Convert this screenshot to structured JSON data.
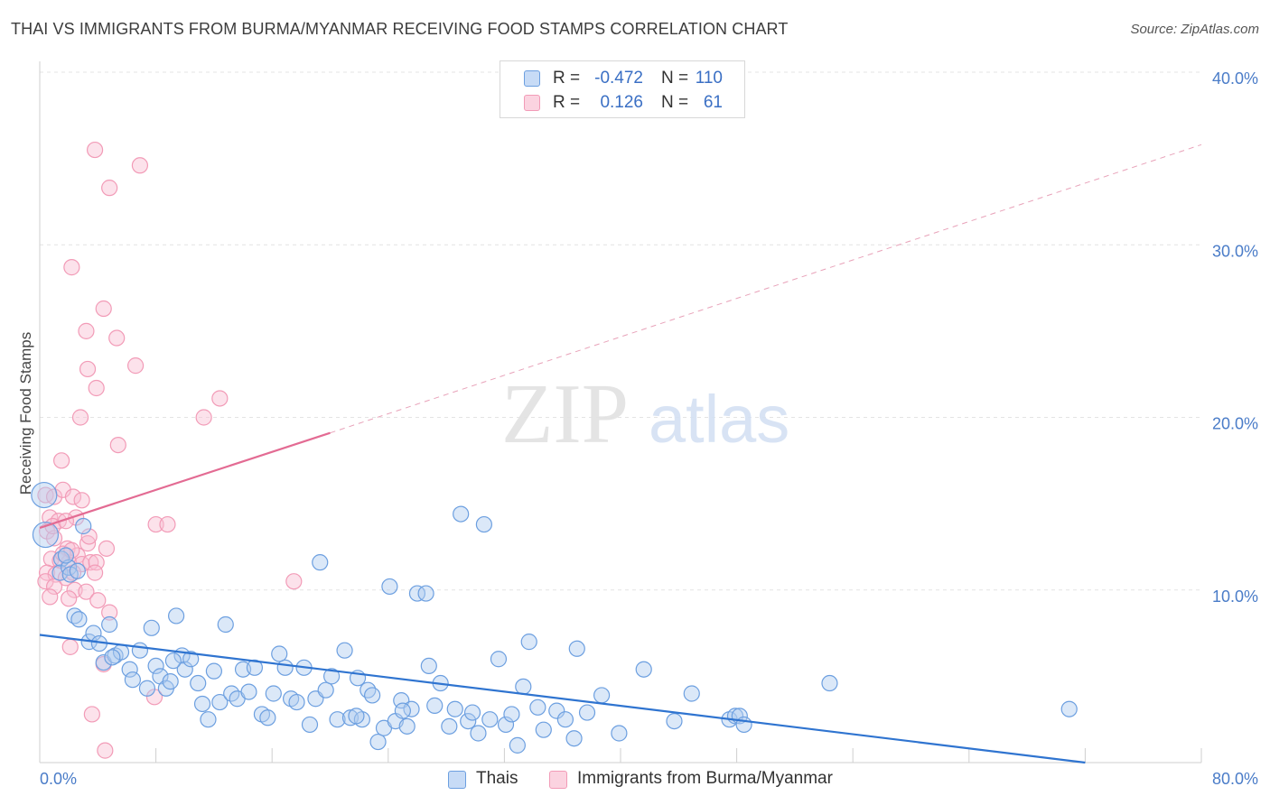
{
  "title": "THAI VS IMMIGRANTS FROM BURMA/MYANMAR RECEIVING FOOD STAMPS CORRELATION CHART",
  "source": "Source: ZipAtlas.com",
  "watermark": {
    "zip": "ZIP",
    "atlas": "atlas"
  },
  "colors": {
    "thai": "#6c9fe0",
    "thai_line": "#2f74d0",
    "burma": "#f29bb7",
    "burma_line": "#e36b93",
    "tick": "#4a7cc8"
  },
  "legend": {
    "rows": [
      {
        "r_label": "R =",
        "r_value": "-0.472",
        "n_label": "N =",
        "n_value": "110"
      },
      {
        "r_label": "R =",
        "r_value": "0.126",
        "n_label": "N =",
        "n_value": "61"
      }
    ]
  },
  "bottom_legend": {
    "thai": "Thais",
    "burma": "Immigrants from Burma/Myanmar"
  },
  "chart_data": {
    "type": "scatter",
    "title": "THAI VS IMMIGRANTS FROM BURMA/MYANMAR RECEIVING FOOD STAMPS CORRELATION CHART",
    "xlabel": "",
    "ylabel": "Receiving Food Stamps",
    "xlim": [
      0,
      80
    ],
    "ylim": [
      0,
      40
    ],
    "x_tick_labels": [
      "0.0%",
      "80.0%"
    ],
    "y_ticks": [
      10,
      20,
      30,
      40
    ],
    "y_tick_labels": [
      "10.0%",
      "20.0%",
      "30.0%",
      "40.0%"
    ],
    "series": [
      {
        "name": "Thais",
        "r": -0.472,
        "n": 110,
        "trend": {
          "x": [
            0,
            72
          ],
          "y": [
            7.4,
            0
          ],
          "style": "solid"
        },
        "points": [
          [
            0.3,
            15.5
          ],
          [
            0.4,
            13.2
          ],
          [
            1.5,
            11.8
          ],
          [
            1.4,
            11.0
          ],
          [
            2.0,
            11.3
          ],
          [
            2.1,
            10.9
          ],
          [
            3.0,
            13.7
          ],
          [
            2.4,
            8.5
          ],
          [
            2.7,
            8.3
          ],
          [
            3.4,
            7.0
          ],
          [
            3.7,
            7.5
          ],
          [
            4.1,
            6.9
          ],
          [
            4.4,
            5.8
          ],
          [
            4.8,
            8.0
          ],
          [
            5.2,
            6.2
          ],
          [
            5.6,
            6.4
          ],
          [
            6.2,
            5.4
          ],
          [
            6.4,
            4.8
          ],
          [
            6.9,
            6.5
          ],
          [
            7.4,
            4.3
          ],
          [
            7.7,
            7.8
          ],
          [
            8.0,
            5.6
          ],
          [
            8.3,
            5.0
          ],
          [
            8.7,
            4.3
          ],
          [
            9.0,
            4.7
          ],
          [
            9.4,
            8.5
          ],
          [
            9.8,
            6.2
          ],
          [
            10.0,
            5.4
          ],
          [
            10.4,
            6.0
          ],
          [
            10.9,
            4.6
          ],
          [
            11.2,
            3.4
          ],
          [
            11.6,
            2.5
          ],
          [
            12.0,
            5.3
          ],
          [
            12.4,
            3.5
          ],
          [
            12.8,
            8.0
          ],
          [
            13.2,
            4.0
          ],
          [
            13.6,
            3.7
          ],
          [
            14.0,
            5.4
          ],
          [
            14.4,
            4.1
          ],
          [
            14.8,
            5.5
          ],
          [
            15.3,
            2.8
          ],
          [
            15.7,
            2.6
          ],
          [
            16.1,
            4.0
          ],
          [
            16.5,
            6.3
          ],
          [
            16.9,
            5.5
          ],
          [
            17.3,
            3.7
          ],
          [
            17.7,
            3.5
          ],
          [
            18.2,
            5.5
          ],
          [
            18.6,
            2.2
          ],
          [
            19.0,
            3.7
          ],
          [
            19.3,
            11.6
          ],
          [
            19.7,
            4.2
          ],
          [
            20.1,
            5.0
          ],
          [
            20.5,
            2.5
          ],
          [
            21.0,
            6.5
          ],
          [
            21.4,
            2.6
          ],
          [
            21.9,
            4.9
          ],
          [
            22.2,
            2.5
          ],
          [
            22.6,
            4.2
          ],
          [
            22.9,
            3.9
          ],
          [
            23.3,
            1.2
          ],
          [
            23.7,
            2.0
          ],
          [
            24.1,
            10.2
          ],
          [
            24.5,
            2.4
          ],
          [
            24.9,
            3.6
          ],
          [
            25.3,
            2.1
          ],
          [
            25.6,
            3.1
          ],
          [
            26.0,
            9.8
          ],
          [
            26.6,
            9.8
          ],
          [
            26.8,
            5.6
          ],
          [
            27.2,
            3.3
          ],
          [
            27.6,
            4.6
          ],
          [
            28.2,
            2.1
          ],
          [
            28.6,
            3.1
          ],
          [
            29.0,
            14.4
          ],
          [
            29.5,
            2.4
          ],
          [
            29.8,
            2.9
          ],
          [
            30.2,
            1.7
          ],
          [
            30.6,
            13.8
          ],
          [
            31.0,
            2.5
          ],
          [
            31.6,
            6.0
          ],
          [
            32.1,
            2.2
          ],
          [
            32.5,
            2.8
          ],
          [
            32.9,
            1.0
          ],
          [
            33.3,
            4.4
          ],
          [
            33.7,
            7.0
          ],
          [
            34.3,
            3.2
          ],
          [
            34.7,
            1.9
          ],
          [
            35.6,
            3.0
          ],
          [
            36.2,
            2.5
          ],
          [
            36.8,
            1.4
          ],
          [
            37.0,
            6.6
          ],
          [
            37.7,
            2.9
          ],
          [
            38.7,
            3.9
          ],
          [
            39.9,
            1.7
          ],
          [
            41.6,
            5.4
          ],
          [
            43.7,
            2.4
          ],
          [
            44.9,
            4.0
          ],
          [
            47.5,
            2.5
          ],
          [
            47.9,
            2.7
          ],
          [
            48.2,
            2.7
          ],
          [
            48.5,
            2.2
          ],
          [
            54.4,
            4.6
          ],
          [
            70.9,
            3.1
          ],
          [
            1.8,
            12.0
          ],
          [
            2.6,
            11.1
          ],
          [
            5.0,
            6.1
          ],
          [
            9.2,
            5.9
          ],
          [
            21.8,
            2.7
          ],
          [
            25.0,
            3.0
          ]
        ]
      },
      {
        "name": "Immigrants from Burma/Myanmar",
        "r": 0.126,
        "n": 61,
        "trend": {
          "x": [
            0,
            20
          ],
          "y": [
            13.6,
            19.1
          ],
          "style": "solid",
          "extension": {
            "x": [
              20,
              80
            ],
            "y": [
              19.1,
              35.8
            ],
            "style": "dashed"
          }
        },
        "points": [
          [
            3.8,
            35.5
          ],
          [
            4.8,
            33.3
          ],
          [
            6.9,
            34.6
          ],
          [
            2.2,
            28.7
          ],
          [
            4.4,
            26.3
          ],
          [
            3.2,
            25.0
          ],
          [
            5.3,
            24.6
          ],
          [
            3.3,
            22.8
          ],
          [
            6.6,
            23.0
          ],
          [
            3.9,
            21.7
          ],
          [
            12.4,
            21.1
          ],
          [
            2.8,
            20.0
          ],
          [
            11.3,
            20.0
          ],
          [
            5.4,
            18.4
          ],
          [
            1.5,
            17.5
          ],
          [
            0.4,
            15.5
          ],
          [
            1.0,
            15.4
          ],
          [
            1.6,
            15.8
          ],
          [
            2.3,
            15.4
          ],
          [
            2.9,
            15.2
          ],
          [
            0.7,
            14.2
          ],
          [
            1.3,
            14.0
          ],
          [
            2.5,
            14.2
          ],
          [
            8.0,
            13.8
          ],
          [
            8.8,
            13.8
          ],
          [
            0.5,
            13.4
          ],
          [
            1.0,
            13.0
          ],
          [
            1.9,
            12.4
          ],
          [
            2.6,
            12.0
          ],
          [
            3.3,
            12.7
          ],
          [
            4.6,
            12.4
          ],
          [
            0.8,
            11.8
          ],
          [
            1.4,
            11.7
          ],
          [
            2.0,
            11.6
          ],
          [
            2.9,
            11.5
          ],
          [
            3.5,
            11.6
          ],
          [
            3.9,
            11.6
          ],
          [
            0.5,
            11.0
          ],
          [
            1.1,
            10.9
          ],
          [
            1.8,
            10.7
          ],
          [
            2.3,
            11.0
          ],
          [
            3.8,
            11.0
          ],
          [
            0.4,
            10.5
          ],
          [
            1.0,
            10.2
          ],
          [
            2.4,
            10.0
          ],
          [
            17.5,
            10.5
          ],
          [
            3.2,
            9.9
          ],
          [
            0.7,
            9.6
          ],
          [
            2.0,
            9.5
          ],
          [
            4.0,
            9.4
          ],
          [
            4.8,
            8.7
          ],
          [
            2.1,
            6.7
          ],
          [
            4.4,
            5.7
          ],
          [
            7.9,
            3.8
          ],
          [
            3.6,
            2.8
          ],
          [
            4.5,
            0.7
          ],
          [
            1.6,
            12.1
          ],
          [
            2.2,
            12.3
          ],
          [
            0.9,
            13.7
          ],
          [
            1.8,
            14.0
          ],
          [
            3.4,
            13.1
          ]
        ]
      }
    ]
  }
}
